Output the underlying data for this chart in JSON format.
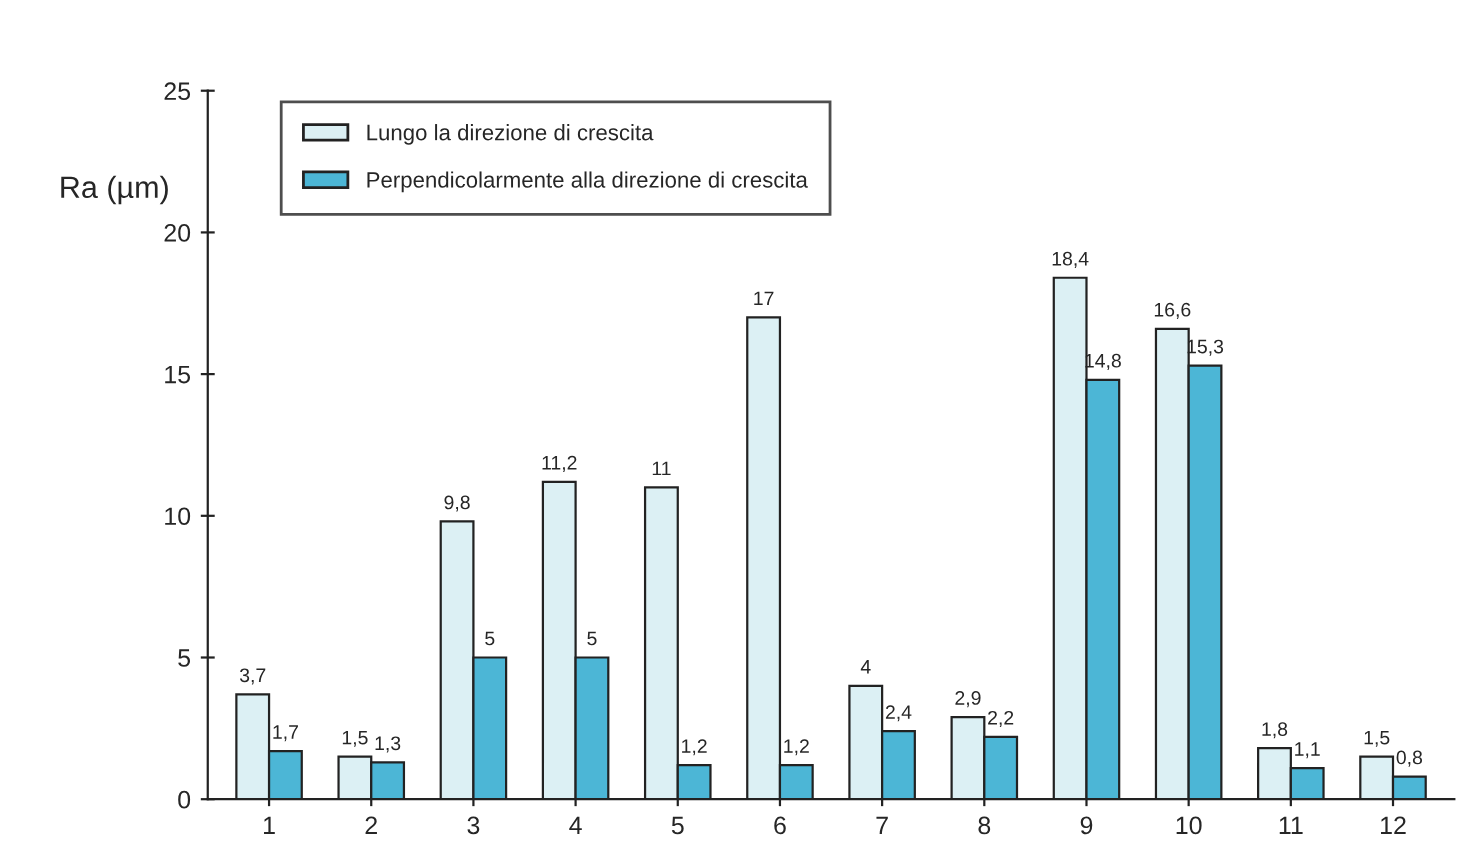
{
  "chart_data": {
    "type": "bar",
    "ylabel": "Ra (µm)",
    "categories": [
      "1",
      "2",
      "3",
      "4",
      "5",
      "6",
      "7",
      "8",
      "9",
      "10",
      "11",
      "12"
    ],
    "ylim": [
      0,
      25
    ],
    "yticks": [
      0,
      5,
      10,
      15,
      20,
      25
    ],
    "grid": false,
    "legend": "top left",
    "series": [
      {
        "name": "Lungo la direzione di crescita",
        "color": "#dcf0f4",
        "values": [
          3.7,
          1.5,
          9.8,
          11.2,
          11,
          17,
          4,
          2.9,
          18.4,
          16.6,
          1.8,
          1.5
        ],
        "value_labels": [
          "3,7",
          "1,5",
          "9,8",
          "11,2",
          "11",
          "17",
          "4",
          "2,9",
          "18,4",
          "16,6",
          "1,8",
          "1,5"
        ]
      },
      {
        "name": "Perpendicolarmente alla direzione di crescita",
        "color": "#4cb6d6",
        "values": [
          1.7,
          1.3,
          5,
          5,
          1.2,
          1.2,
          2.4,
          2.2,
          14.8,
          15.3,
          1.1,
          0.8
        ],
        "value_labels": [
          "1,7",
          "1,3",
          "5",
          "5",
          "1,2",
          "1,2",
          "2,4",
          "2,2",
          "14,8",
          "15,3",
          "1,1",
          "0,8"
        ]
      }
    ]
  }
}
